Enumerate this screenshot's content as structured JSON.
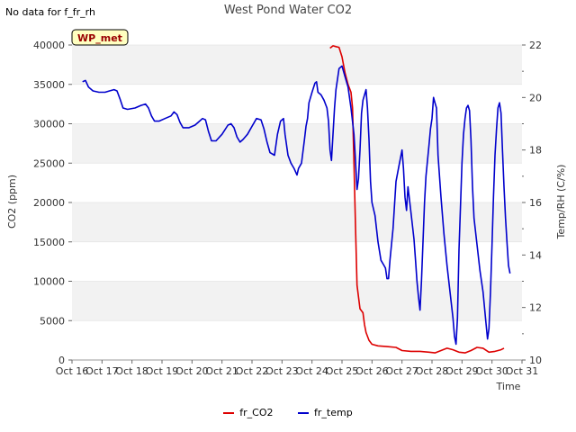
{
  "header": {
    "no_data_text": "No data for f_fr_rh"
  },
  "chart_data": {
    "type": "line",
    "title": "West Pond Water CO2",
    "xlabel": "Time",
    "ylabel_left": "CO2 (ppm)",
    "ylabel_right": "Temp/RH (C/%)",
    "station_badge": "WP_met",
    "x_ticks": [
      "Oct 16",
      "Oct 17",
      "Oct 18",
      "Oct 19",
      "Oct 20",
      "Oct 21",
      "Oct 22",
      "Oct 23",
      "Oct 24",
      "Oct 25",
      "Oct 26",
      "Oct 27",
      "Oct 28",
      "Oct 29",
      "Oct 30",
      "Oct 31"
    ],
    "xlim": [
      0,
      15
    ],
    "ylim_left": [
      0,
      40000
    ],
    "ylim_right": [
      10,
      22
    ],
    "yticks_left": [
      0,
      5000,
      10000,
      15000,
      20000,
      25000,
      30000,
      35000,
      40000
    ],
    "yticks_right": [
      10,
      12,
      14,
      16,
      18,
      20,
      22
    ],
    "colors": {
      "fr_CO2": "#dd0000",
      "fr_temp": "#0000cc",
      "band": "#f2f2f2",
      "badge_bg": "#ffffc0",
      "badge_text": "#990000"
    },
    "legend": [
      "fr_CO2",
      "fr_temp"
    ],
    "series": [
      {
        "name": "fr_CO2",
        "axis": "left",
        "points": [
          [
            8.6,
            39600
          ],
          [
            8.7,
            39900
          ],
          [
            8.8,
            39800
          ],
          [
            8.9,
            39700
          ],
          [
            9.0,
            38500
          ],
          [
            9.1,
            36500
          ],
          [
            9.2,
            35000
          ],
          [
            9.3,
            34000
          ],
          [
            9.35,
            32000
          ],
          [
            9.4,
            25000
          ],
          [
            9.45,
            17000
          ],
          [
            9.5,
            9500
          ],
          [
            9.6,
            6500
          ],
          [
            9.7,
            6000
          ],
          [
            9.75,
            4500
          ],
          [
            9.8,
            3500
          ],
          [
            9.9,
            2500
          ],
          [
            10.0,
            2000
          ],
          [
            10.2,
            1800
          ],
          [
            10.5,
            1700
          ],
          [
            10.8,
            1600
          ],
          [
            11.0,
            1200
          ],
          [
            11.3,
            1100
          ],
          [
            11.6,
            1100
          ],
          [
            11.9,
            1000
          ],
          [
            12.1,
            900
          ],
          [
            12.3,
            1200
          ],
          [
            12.5,
            1500
          ],
          [
            12.7,
            1300
          ],
          [
            12.9,
            1000
          ],
          [
            13.1,
            900
          ],
          [
            13.3,
            1200
          ],
          [
            13.5,
            1600
          ],
          [
            13.7,
            1500
          ],
          [
            13.9,
            1000
          ],
          [
            14.1,
            1100
          ],
          [
            14.3,
            1300
          ],
          [
            14.4,
            1500
          ]
        ]
      },
      {
        "name": "fr_temp",
        "axis": "right",
        "points": [
          [
            0.35,
            20.6
          ],
          [
            0.45,
            20.65
          ],
          [
            0.55,
            20.4
          ],
          [
            0.7,
            20.25
          ],
          [
            0.9,
            20.2
          ],
          [
            1.1,
            20.2
          ],
          [
            1.25,
            20.25
          ],
          [
            1.4,
            20.3
          ],
          [
            1.5,
            20.25
          ],
          [
            1.6,
            19.95
          ],
          [
            1.7,
            19.6
          ],
          [
            1.85,
            19.55
          ],
          [
            2.1,
            19.6
          ],
          [
            2.3,
            19.7
          ],
          [
            2.45,
            19.75
          ],
          [
            2.55,
            19.6
          ],
          [
            2.65,
            19.3
          ],
          [
            2.75,
            19.1
          ],
          [
            2.9,
            19.1
          ],
          [
            3.1,
            19.2
          ],
          [
            3.3,
            19.3
          ],
          [
            3.4,
            19.45
          ],
          [
            3.5,
            19.35
          ],
          [
            3.6,
            19.05
          ],
          [
            3.7,
            18.85
          ],
          [
            3.9,
            18.85
          ],
          [
            4.1,
            18.95
          ],
          [
            4.25,
            19.1
          ],
          [
            4.35,
            19.2
          ],
          [
            4.45,
            19.15
          ],
          [
            4.55,
            18.7
          ],
          [
            4.65,
            18.35
          ],
          [
            4.8,
            18.35
          ],
          [
            5.0,
            18.6
          ],
          [
            5.2,
            18.95
          ],
          [
            5.3,
            19.0
          ],
          [
            5.4,
            18.85
          ],
          [
            5.5,
            18.5
          ],
          [
            5.6,
            18.3
          ],
          [
            5.7,
            18.4
          ],
          [
            5.85,
            18.6
          ],
          [
            6.0,
            18.9
          ],
          [
            6.15,
            19.2
          ],
          [
            6.3,
            19.15
          ],
          [
            6.4,
            18.8
          ],
          [
            6.5,
            18.3
          ],
          [
            6.6,
            17.9
          ],
          [
            6.75,
            17.8
          ],
          [
            6.85,
            18.6
          ],
          [
            6.95,
            19.1
          ],
          [
            7.05,
            19.2
          ],
          [
            7.1,
            18.6
          ],
          [
            7.2,
            17.8
          ],
          [
            7.3,
            17.5
          ],
          [
            7.4,
            17.3
          ],
          [
            7.5,
            17.05
          ],
          [
            7.55,
            17.3
          ],
          [
            7.65,
            17.5
          ],
          [
            7.75,
            18.4
          ],
          [
            7.8,
            18.9
          ],
          [
            7.85,
            19.2
          ],
          [
            7.9,
            19.8
          ],
          [
            8.0,
            20.2
          ],
          [
            8.1,
            20.55
          ],
          [
            8.15,
            20.6
          ],
          [
            8.2,
            20.2
          ],
          [
            8.3,
            20.1
          ],
          [
            8.4,
            19.9
          ],
          [
            8.5,
            19.6
          ],
          [
            8.55,
            19.1
          ],
          [
            8.6,
            18.0
          ],
          [
            8.65,
            17.6
          ],
          [
            8.7,
            18.6
          ],
          [
            8.75,
            19.6
          ],
          [
            8.8,
            20.3
          ],
          [
            8.9,
            21.1
          ],
          [
            9.0,
            21.2
          ],
          [
            9.1,
            20.8
          ],
          [
            9.2,
            20.4
          ],
          [
            9.3,
            19.6
          ],
          [
            9.4,
            18.6
          ],
          [
            9.45,
            17.6
          ],
          [
            9.5,
            16.5
          ],
          [
            9.55,
            16.9
          ],
          [
            9.6,
            18.0
          ],
          [
            9.65,
            19.4
          ],
          [
            9.7,
            19.9
          ],
          [
            9.8,
            20.3
          ],
          [
            9.85,
            19.6
          ],
          [
            9.9,
            18.4
          ],
          [
            9.95,
            16.8
          ],
          [
            10.0,
            16.0
          ],
          [
            10.1,
            15.5
          ],
          [
            10.2,
            14.5
          ],
          [
            10.3,
            13.8
          ],
          [
            10.4,
            13.6
          ],
          [
            10.45,
            13.5
          ],
          [
            10.5,
            13.1
          ],
          [
            10.55,
            13.1
          ],
          [
            10.6,
            13.8
          ],
          [
            10.7,
            15.0
          ],
          [
            10.8,
            16.8
          ],
          [
            10.9,
            17.4
          ],
          [
            11.0,
            18.0
          ],
          [
            11.05,
            17.3
          ],
          [
            11.1,
            16.2
          ],
          [
            11.15,
            15.7
          ],
          [
            11.2,
            16.6
          ],
          [
            11.3,
            15.6
          ],
          [
            11.4,
            14.6
          ],
          [
            11.45,
            13.8
          ],
          [
            11.5,
            13.0
          ],
          [
            11.55,
            12.4
          ],
          [
            11.6,
            11.9
          ],
          [
            11.65,
            13.0
          ],
          [
            11.7,
            14.5
          ],
          [
            11.75,
            16.0
          ],
          [
            11.8,
            17.0
          ],
          [
            11.9,
            18.2
          ],
          [
            11.95,
            18.8
          ],
          [
            12.0,
            19.2
          ],
          [
            12.05,
            20.0
          ],
          [
            12.1,
            19.8
          ],
          [
            12.15,
            19.6
          ],
          [
            12.2,
            17.8
          ],
          [
            12.3,
            16.2
          ],
          [
            12.4,
            14.8
          ],
          [
            12.5,
            13.6
          ],
          [
            12.6,
            12.6
          ],
          [
            12.7,
            11.6
          ],
          [
            12.75,
            10.9
          ],
          [
            12.8,
            10.6
          ],
          [
            12.85,
            11.6
          ],
          [
            12.9,
            14.2
          ],
          [
            13.0,
            17.5
          ],
          [
            13.05,
            18.6
          ],
          [
            13.1,
            19.2
          ],
          [
            13.15,
            19.6
          ],
          [
            13.2,
            19.7
          ],
          [
            13.25,
            19.5
          ],
          [
            13.3,
            18.4
          ],
          [
            13.35,
            16.6
          ],
          [
            13.4,
            15.4
          ],
          [
            13.5,
            14.4
          ],
          [
            13.6,
            13.4
          ],
          [
            13.7,
            12.6
          ],
          [
            13.8,
            11.4
          ],
          [
            13.85,
            10.8
          ],
          [
            13.9,
            11.2
          ],
          [
            13.95,
            12.6
          ],
          [
            14.0,
            14.4
          ],
          [
            14.05,
            16.2
          ],
          [
            14.1,
            17.8
          ],
          [
            14.15,
            18.8
          ],
          [
            14.2,
            19.6
          ],
          [
            14.25,
            19.8
          ],
          [
            14.3,
            19.4
          ],
          [
            14.35,
            18.0
          ],
          [
            14.4,
            16.6
          ],
          [
            14.45,
            15.4
          ],
          [
            14.5,
            14.5
          ],
          [
            14.55,
            13.6
          ],
          [
            14.6,
            13.3
          ]
        ]
      }
    ]
  }
}
